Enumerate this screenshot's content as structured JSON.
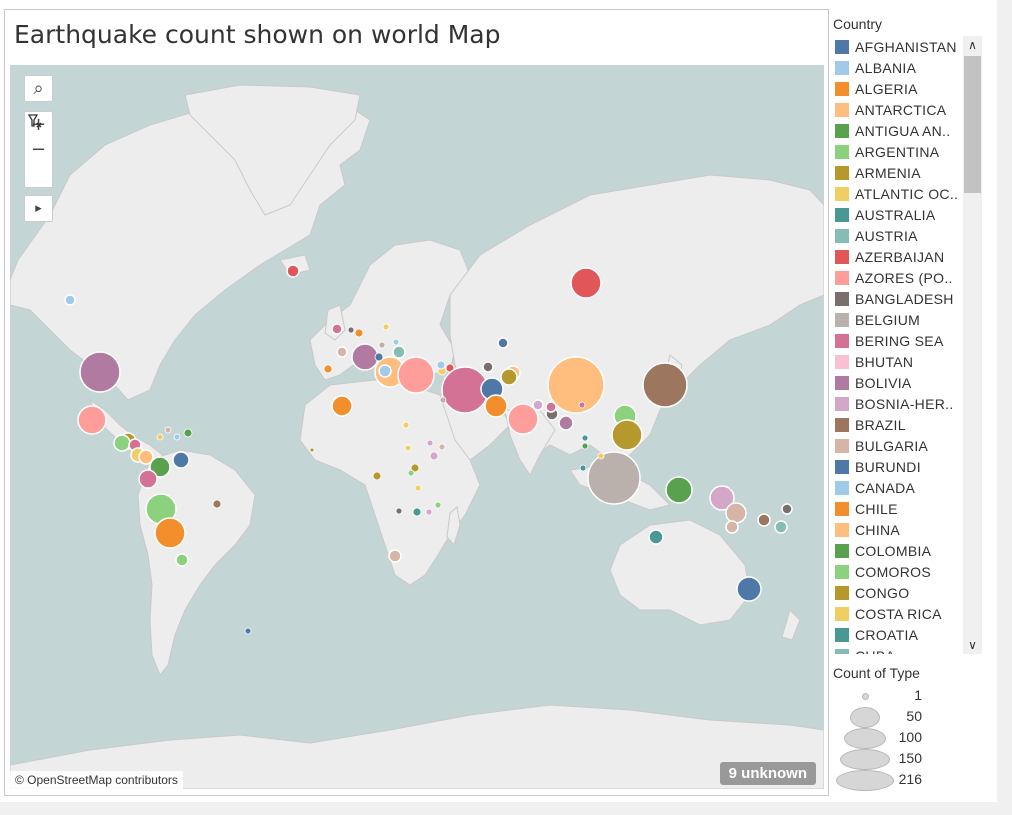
{
  "title": "Earthquake count shown on world Map",
  "map": {
    "attribution": "© OpenStreetMap contributors",
    "unknown_badge": "9 unknown",
    "controls": {
      "search": "⌕",
      "zoom_in": "+",
      "zoom_out": "−",
      "pan": "▸"
    },
    "colors": {
      "water": "#c4d5d5",
      "land": "#ededed",
      "border": "#c9c9c9"
    }
  },
  "legend": {
    "title": "Country",
    "items": [
      {
        "label": "AFGHANISTAN",
        "color": "#4e79a7"
      },
      {
        "label": "ALBANIA",
        "color": "#a0cbe8"
      },
      {
        "label": "ALGERIA",
        "color": "#f28e2b"
      },
      {
        "label": "ANTARCTICA",
        "color": "#ffbe7d"
      },
      {
        "label": "ANTIGUA AN..",
        "color": "#59a14f"
      },
      {
        "label": "ARGENTINA",
        "color": "#8cd17d"
      },
      {
        "label": "ARMENIA",
        "color": "#b6992d"
      },
      {
        "label": "ATLANTIC OC..",
        "color": "#f1ce63"
      },
      {
        "label": "AUSTRALIA",
        "color": "#499894"
      },
      {
        "label": "AUSTRIA",
        "color": "#86bcb6"
      },
      {
        "label": "AZERBAIJAN",
        "color": "#e15759"
      },
      {
        "label": "AZORES (PO..",
        "color": "#ff9d9a"
      },
      {
        "label": "BANGLADESH",
        "color": "#79706e"
      },
      {
        "label": "BELGIUM",
        "color": "#bab0ac"
      },
      {
        "label": "BERING SEA",
        "color": "#d37295"
      },
      {
        "label": "BHUTAN",
        "color": "#fabfd2"
      },
      {
        "label": "BOLIVIA",
        "color": "#b07aa1"
      },
      {
        "label": "BOSNIA-HER..",
        "color": "#d4a6c8"
      },
      {
        "label": "BRAZIL",
        "color": "#9d7660"
      },
      {
        "label": "BULGARIA",
        "color": "#d7b5a6"
      },
      {
        "label": "BURUNDI",
        "color": "#4e79a7"
      },
      {
        "label": "CANADA",
        "color": "#a0cbe8"
      },
      {
        "label": "CHILE",
        "color": "#f28e2b"
      },
      {
        "label": "CHINA",
        "color": "#ffbe7d"
      },
      {
        "label": "COLOMBIA",
        "color": "#59a14f"
      },
      {
        "label": "COMOROS",
        "color": "#8cd17d"
      },
      {
        "label": "CONGO",
        "color": "#b6992d"
      },
      {
        "label": "COSTA RICA",
        "color": "#f1ce63"
      },
      {
        "label": "CROATIA",
        "color": "#499894"
      },
      {
        "label": "CUBA",
        "color": "#86bcb6"
      }
    ]
  },
  "size_legend": {
    "title": "Count of Type",
    "entries": [
      {
        "label": "1",
        "value": 1
      },
      {
        "label": "50",
        "value": 50
      },
      {
        "label": "100",
        "value": 100
      },
      {
        "label": "150",
        "value": 150
      },
      {
        "label": "216",
        "value": 216
      }
    ]
  }
}
